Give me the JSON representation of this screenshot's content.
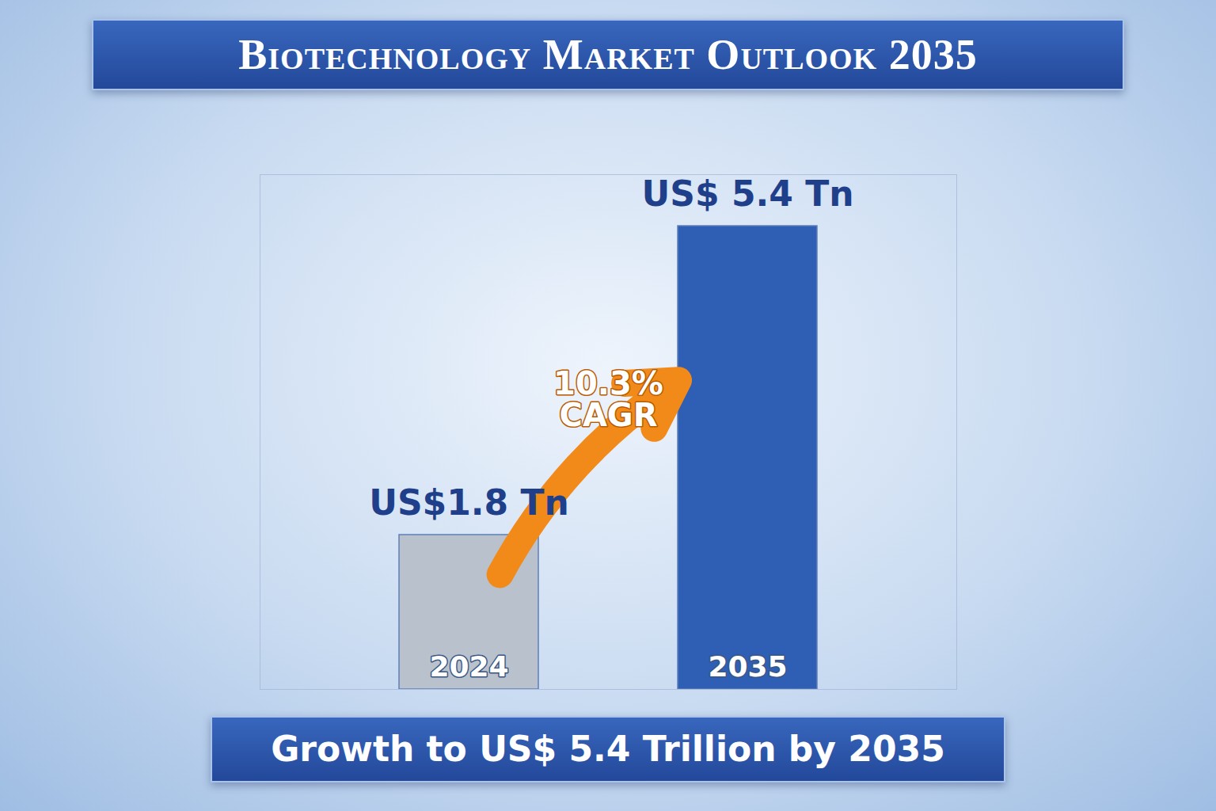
{
  "chart_data": {
    "type": "bar",
    "title": "Biotechnology Market Outlook 2035",
    "caption": "Growth to US$ 5.4 Trillion by 2035",
    "annotation": "10.3% CAGR",
    "categories": [
      "2024",
      "2035"
    ],
    "values": [
      1.8,
      5.4
    ],
    "value_labels": [
      "US$1.8 Tn",
      "US$ 5.4 Tn"
    ],
    "colors": [
      "#b9c1cd",
      "#2f5eb5"
    ],
    "ylim": [
      0,
      6
    ],
    "yticks": [],
    "data_labels": true,
    "tick_labels": "x",
    "grid": false
  }
}
